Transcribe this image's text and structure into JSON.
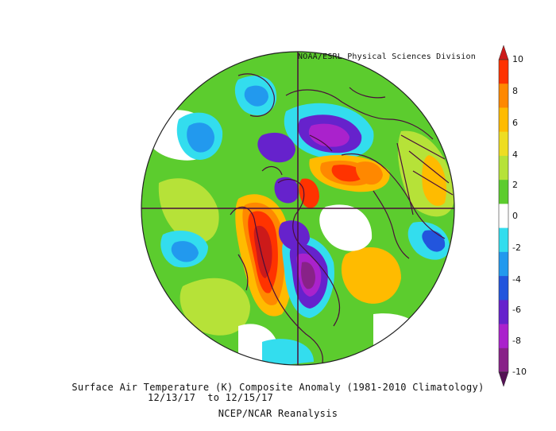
{
  "credit": "NOAA/ESRL Physical Sciences Division",
  "caption": {
    "line1": "Surface Air Temperature (K) Composite Anomaly (1981-2010 Climatology)",
    "line2": "12/13/17  to 12/15/17",
    "line3": "NCEP/NCAR Reanalysis"
  },
  "colorbar": {
    "ticks": [
      "10",
      "8",
      "6",
      "4",
      "2",
      "0",
      "-2",
      "-4",
      "-6",
      "-8",
      "-10"
    ],
    "colors": [
      "#cc1a1a",
      "#ff3300",
      "#ff8800",
      "#ffbb00",
      "#eedd22",
      "#b6e238",
      "#5ccc2e",
      "#ffffff",
      "#33ddee",
      "#2299ee",
      "#2255dd",
      "#6622cc",
      "#aa22cc",
      "#882288",
      "#551155"
    ]
  },
  "map_colors": {
    "ocean": "#ffffff",
    "coast": "#4a0f3a",
    "warm_strong": "#cc1a1a",
    "warm_orange": "#ff8800",
    "warm_yellow": "#ffbb00",
    "warm_lime": "#b6e238",
    "warm_green": "#5ccc2e",
    "cold_cyan": "#33ddee",
    "cold_blue": "#2299ee",
    "cold_darkblue": "#2255dd",
    "cold_purple": "#6622cc",
    "cold_magenta": "#aa22cc",
    "cold_maroon": "#551155"
  }
}
